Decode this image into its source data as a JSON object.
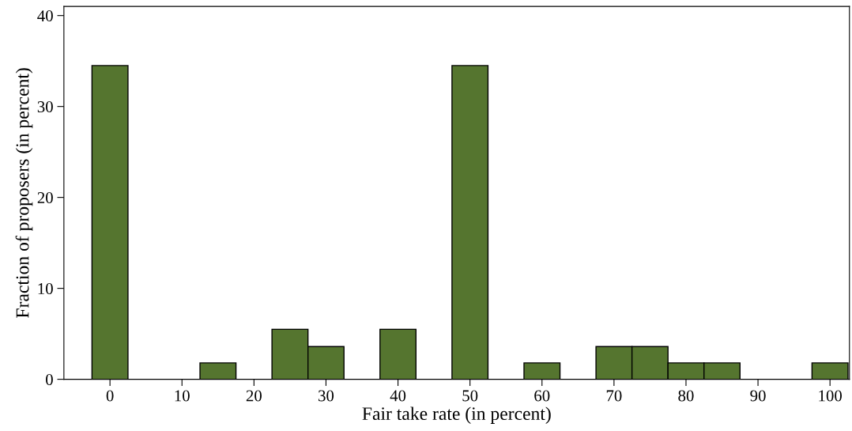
{
  "chart_data": {
    "type": "histogram",
    "xlabel": "Fair take rate (in percent)",
    "ylabel": "Fraction of proposers (in percent)",
    "bins": [
      -2.5,
      2.5,
      7.5,
      12.5,
      17.5,
      22.5,
      27.5,
      32.5,
      37.5,
      42.5,
      47.5,
      52.5,
      57.5,
      62.5,
      67.5,
      72.5,
      77.5,
      82.5,
      87.5,
      92.5,
      97.5,
      102.5
    ],
    "values": [
      34.5,
      0,
      0,
      1.8,
      0,
      5.5,
      3.6,
      0,
      5.5,
      0,
      34.5,
      0,
      1.8,
      0,
      3.6,
      3.6,
      1.8,
      1.8,
      0,
      0,
      1.8
    ],
    "color": "#55752f",
    "xlim": [
      -6.4,
      102.7
    ],
    "ylim": [
      0,
      41
    ],
    "xticks": [
      0,
      10,
      20,
      30,
      40,
      50,
      60,
      70,
      80,
      90,
      100
    ],
    "yticks": [
      0,
      10,
      20,
      30,
      40
    ],
    "grid": false
  }
}
